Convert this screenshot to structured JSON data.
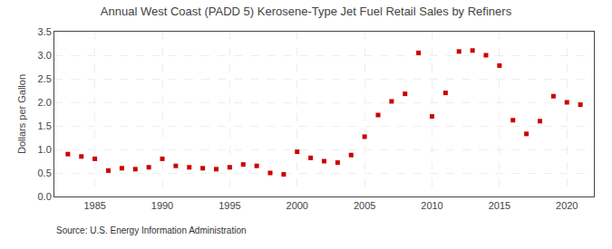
{
  "chart_data": {
    "type": "scatter",
    "title": "Annual West Coast (PADD 5) Kerosene-Type Jet Fuel Retail Sales by Refiners",
    "ylabel": "Dollars per Gallon",
    "annotations": [
      "Source: U.S. Energy Information Administration"
    ],
    "x": [
      1983,
      1984,
      1985,
      1986,
      1987,
      1988,
      1989,
      1990,
      1991,
      1992,
      1993,
      1994,
      1995,
      1996,
      1997,
      1998,
      1999,
      2000,
      2001,
      2002,
      2003,
      2004,
      2005,
      2006,
      2007,
      2008,
      2009,
      2010,
      2011,
      2012,
      2013,
      2014,
      2015,
      2016,
      2017,
      2018,
      2019,
      2020,
      2021
    ],
    "values": [
      0.9,
      0.85,
      0.8,
      0.55,
      0.6,
      0.58,
      0.62,
      0.8,
      0.65,
      0.62,
      0.6,
      0.58,
      0.62,
      0.68,
      0.65,
      0.5,
      0.47,
      0.95,
      0.82,
      0.75,
      0.72,
      0.88,
      1.27,
      1.73,
      2.02,
      2.18,
      3.05,
      1.7,
      2.2,
      3.08,
      3.1,
      3.0,
      2.78,
      1.62,
      1.33,
      1.6,
      2.13,
      2.0,
      1.95
    ],
    "color": "#cc0000",
    "marker": "square",
    "xlim": [
      1982,
      2022
    ],
    "xticks": [
      1985,
      1990,
      1995,
      2000,
      2005,
      2010,
      2015,
      2020
    ],
    "ylim": [
      0.0,
      3.5
    ],
    "yticks": [
      {
        "value": 0.0,
        "label": "0.0"
      },
      0.5,
      {
        "value": 1.0,
        "label": "1.0"
      },
      1.5,
      {
        "value": 2.0,
        "label": "2.0"
      },
      2.5,
      {
        "value": 3.0,
        "label": "3.0"
      },
      3.5
    ],
    "grid": true
  }
}
